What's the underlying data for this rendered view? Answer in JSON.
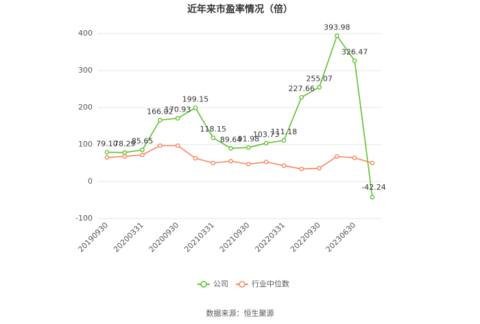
{
  "chart_data": {
    "type": "line",
    "title": "近年来市盈率情况（倍）",
    "categories": [
      "20190930",
      null,
      "20200331",
      null,
      "20200930",
      null,
      "20210331",
      null,
      "20210930",
      null,
      "20220331",
      null,
      "20220930",
      null,
      "20230630",
      null
    ],
    "series": [
      {
        "name": "公司",
        "color": "#5ac22b",
        "values": [
          79.1,
          78.29,
          85.65,
          166.02,
          170.93,
          199.15,
          118.15,
          89.64,
          91.98,
          103.73,
          111.18,
          227.66,
          255.07,
          393.98,
          326.47,
          -42.24
        ],
        "value_labels": [
          "79.10",
          "78.29",
          "85.65",
          "166.02",
          "170.93",
          "199.15",
          "118.15",
          "89.64",
          "91.98",
          "103.73",
          "111.18",
          "227.66",
          "255.07",
          "393.98",
          "326.47",
          "-42.24"
        ]
      },
      {
        "name": "行业中位数",
        "color": "#f7845b",
        "values": [
          65,
          68,
          72,
          97,
          97,
          63,
          50,
          55,
          47,
          53,
          43,
          34,
          36,
          68,
          64,
          50
        ]
      }
    ],
    "ylim": [
      -100,
      400
    ],
    "yticks": [
      -100,
      0,
      100,
      200,
      300,
      400
    ],
    "grid": true,
    "source": "数据来源：恒生聚源"
  }
}
